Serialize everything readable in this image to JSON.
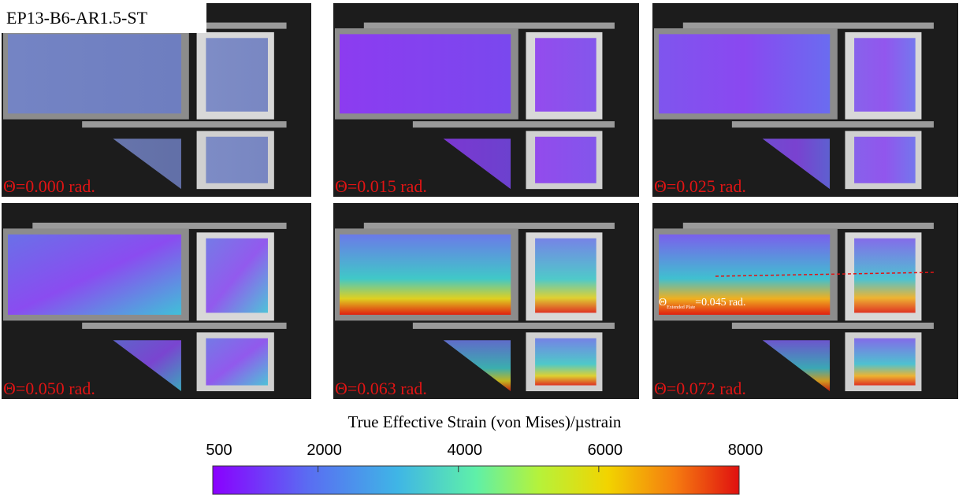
{
  "title": "EP13-B6-AR1.5-ST",
  "panels": [
    {
      "label": "Θ=0.000 rad."
    },
    {
      "label": "Θ=0.015 rad."
    },
    {
      "label": "Θ=0.025 rad."
    },
    {
      "label": "Θ=0.050 rad."
    },
    {
      "label": "Θ=0.063 rad."
    },
    {
      "label": "Θ=0.072 rad."
    }
  ],
  "annotation": {
    "symbol": "Θ",
    "subscript": "Extended Plate",
    "text": "=0.045 rad."
  },
  "colorbar": {
    "label": "True Effective Strain (von Mises)/µstrain",
    "range": [
      500,
      8000
    ],
    "ticks": [
      500,
      2000,
      4000,
      6000,
      8000
    ]
  }
}
